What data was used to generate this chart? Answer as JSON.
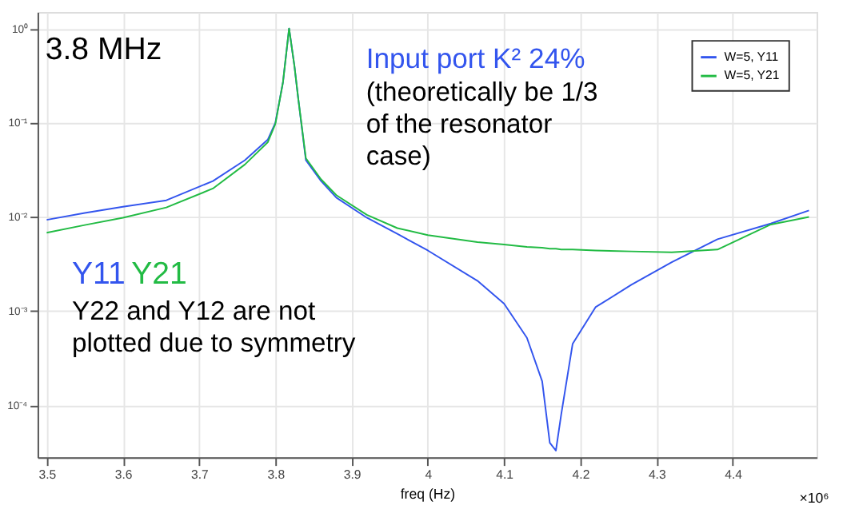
{
  "chart_data": {
    "type": "line",
    "xlabel": "freq (Hz)",
    "x": [
      3.5,
      3.55,
      3.6,
      3.657,
      3.718,
      3.76,
      3.79,
      3.8,
      3.81,
      3.818,
      3.825,
      3.83,
      3.84,
      3.86,
      3.88,
      3.92,
      3.96,
      4.0,
      4.065,
      4.1,
      4.13,
      4.15,
      4.16,
      4.168,
      4.175,
      4.19,
      4.22,
      4.267,
      4.32,
      4.38,
      4.45,
      4.5
    ],
    "series": [
      {
        "name": "W=5, Y11",
        "color": "#3355ee",
        "values": [
          0.0093,
          0.011,
          0.0128,
          0.015,
          0.024,
          0.04,
          0.066,
          0.1,
          0.27,
          1.0,
          0.4,
          0.18,
          0.04,
          0.024,
          0.016,
          0.0098,
          0.0066,
          0.0044,
          0.0021,
          0.0012,
          0.00052,
          0.00018,
          4e-05,
          3.3e-05,
          8e-05,
          0.00045,
          0.0011,
          0.0019,
          0.0033,
          0.0058,
          0.0085,
          0.0117
        ]
      },
      {
        "name": "W=5, Y21",
        "color": "#22bb44",
        "values": [
          0.0068,
          0.0082,
          0.0098,
          0.0126,
          0.02,
          0.036,
          0.062,
          0.097,
          0.27,
          1.0,
          0.4,
          0.18,
          0.042,
          0.025,
          0.017,
          0.0105,
          0.0076,
          0.0064,
          0.0054,
          0.0051,
          0.0048,
          0.0047,
          0.0046,
          0.0046,
          0.0045,
          0.0045,
          0.0044,
          0.0043,
          0.0042,
          0.0045,
          0.0083,
          0.01
        ]
      }
    ],
    "log": "y",
    "grid": true,
    "legend": "top right",
    "xlim": [
      3.488,
      4.51
    ],
    "xticks": [
      3.5,
      3.6,
      3.7,
      3.8,
      3.9,
      4,
      4.1,
      4.2,
      4.3,
      4.4
    ],
    "ylim": [
      2.8e-05,
      1.5
    ],
    "yticks": [
      {
        "value": 1,
        "label": "10⁰"
      },
      {
        "value": 0.1,
        "label": "10⁻¹"
      },
      {
        "value": 0.01,
        "label": "10⁻²"
      },
      {
        "value": 0.001,
        "label": "10⁻³"
      },
      {
        "value": 0.0001,
        "label": "10⁻⁴"
      }
    ],
    "annotations": [
      "3.8 MHz",
      "Input port K² 24%",
      "(theoretically be 1/3\nof the resonator\ncase)",
      "Y11",
      "Y21",
      "Y22 and Y12 are not\nplotted due to symmetry",
      "×10⁶"
    ]
  }
}
